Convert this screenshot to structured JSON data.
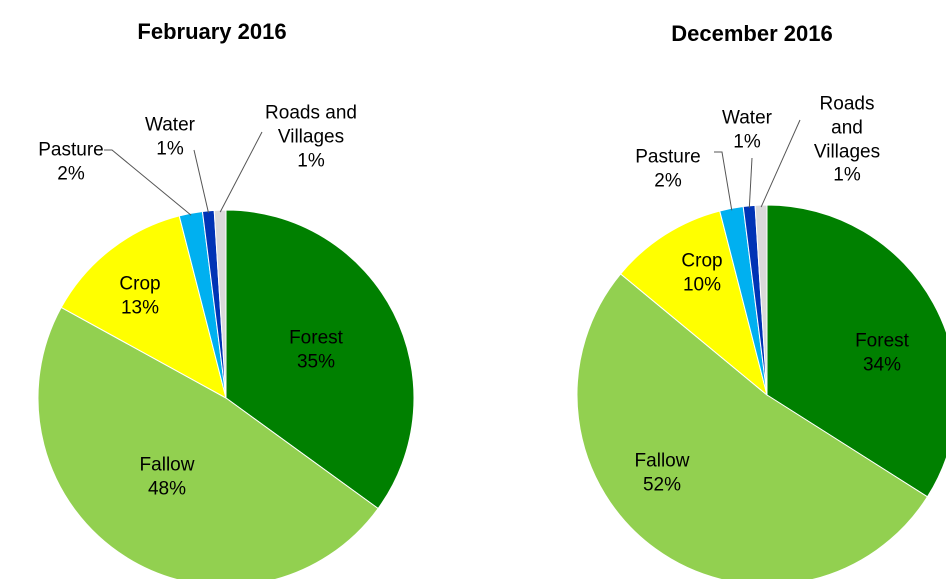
{
  "chart_data": [
    {
      "type": "pie",
      "title": "February 2016",
      "categories": [
        "Forest",
        "Fallow",
        "Crop",
        "Pasture",
        "Water",
        "Roads and Villages"
      ],
      "values": [
        35,
        48,
        13,
        2,
        1,
        1
      ],
      "value_labels": [
        "35%",
        "48%",
        "13%",
        "2%",
        "1%",
        "1%"
      ],
      "colors": [
        "#008000",
        "#92d050",
        "#ffff00",
        "#00b0f0",
        "#0033b5",
        "#d9d9d9"
      ]
    },
    {
      "type": "pie",
      "title": "December 2016",
      "categories": [
        "Forest",
        "Fallow",
        "Crop",
        "Pasture",
        "Water",
        "Roads and Villages"
      ],
      "values": [
        34,
        52,
        10,
        2,
        1,
        1
      ],
      "value_labels": [
        "34%",
        "52%",
        "10%",
        "2%",
        "1%",
        "1%"
      ],
      "colors": [
        "#008000",
        "#92d050",
        "#ffff00",
        "#00b0f0",
        "#0033b5",
        "#d9d9d9"
      ]
    }
  ]
}
